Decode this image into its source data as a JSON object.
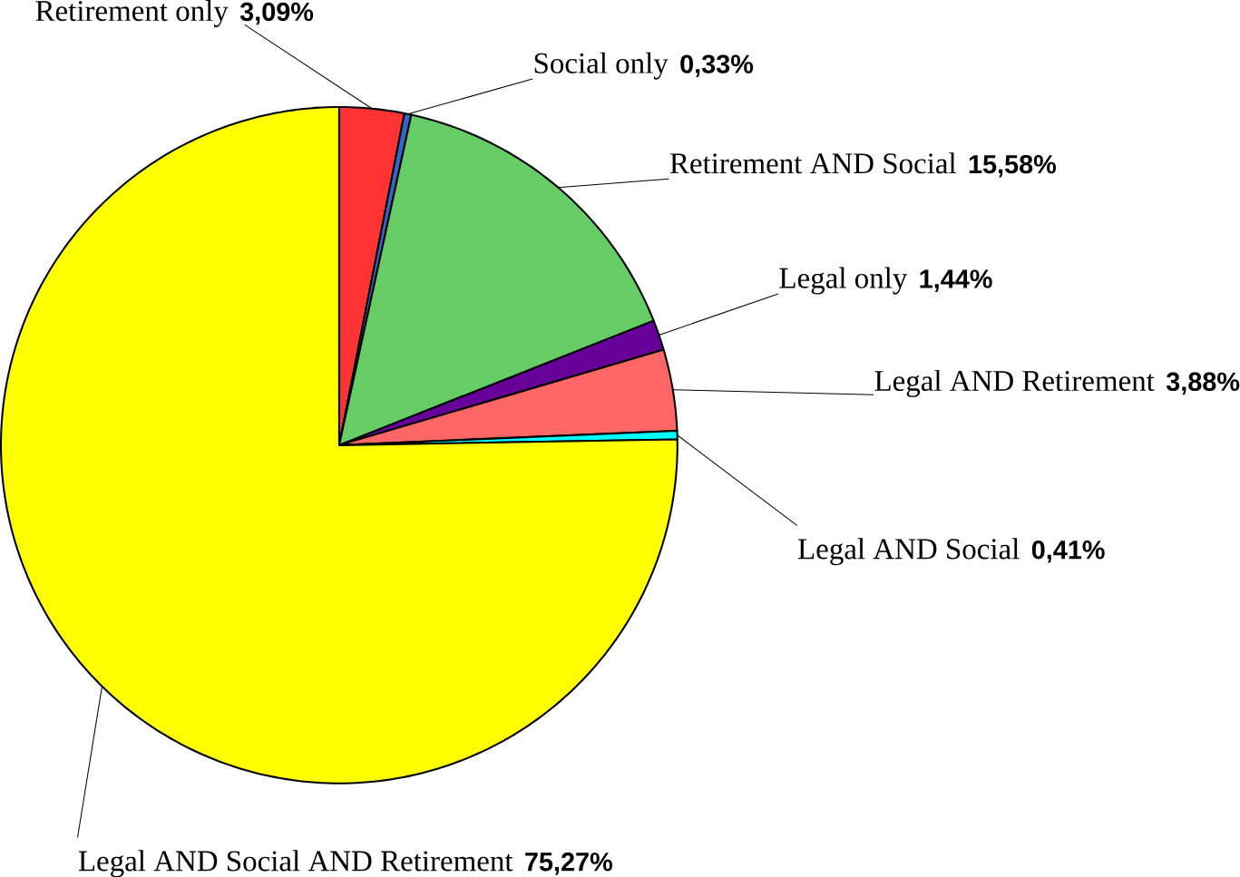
{
  "chart_data": {
    "type": "pie",
    "categories": [
      "Retirement only",
      "Social only",
      "Retirement AND Social",
      "Legal only",
      "Legal AND Retirement",
      "Legal AND Social",
      "Legal AND Social AND Retirement"
    ],
    "values": [
      3.09,
      0.33,
      15.58,
      1.44,
      3.88,
      0.41,
      75.27
    ],
    "colors": [
      "#ff3333",
      "#3366cc",
      "#66cc66",
      "#660099",
      "#ff6666",
      "#00ffff",
      "#ffff00"
    ],
    "value_labels": [
      "3,09%",
      "0,33%",
      "15,58%",
      "1,44%",
      "3,88%",
      "0,41%",
      "75,27%"
    ]
  }
}
